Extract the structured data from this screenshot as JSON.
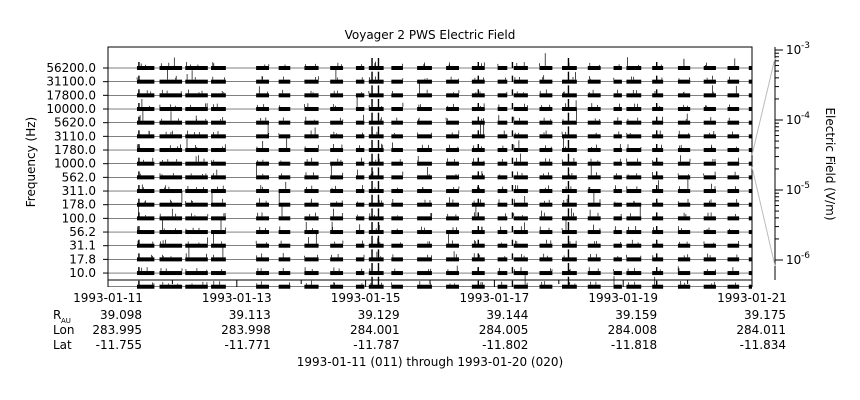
{
  "chart_data": {
    "type": "line",
    "title": "Voyager 2 PWS Electric Field",
    "ylabel": "Frequency (Hz)",
    "colorbar_label": "Electric Field (V/m)",
    "subtitle": "1993-01-11 (011) through 1993-01-20 (020)",
    "channels": [
      "56200.0",
      "31100.0",
      "17800.0",
      "10000.0",
      "5620.0",
      "3110.0",
      "1780.0",
      "1000.0",
      "562.0",
      "311.0",
      "178.0",
      "100.0",
      "56.2",
      "31.1",
      "17.8",
      "10.0"
    ],
    "x_ticks": [
      "1993-01-11",
      "1993-01-13",
      "1993-01-15",
      "1993-01-17",
      "1993-01-19",
      "1993-01-21"
    ],
    "xlim_days": [
      0,
      10
    ],
    "colorbar_ticks": [
      {
        "base": "10",
        "exp": "-3"
      },
      {
        "base": "10",
        "exp": "-4"
      },
      {
        "base": "10",
        "exp": "-5"
      },
      {
        "base": "10",
        "exp": "-6"
      }
    ],
    "ephemeris": [
      {
        "label": "R",
        "sub": "AU",
        "values": [
          "39.098",
          "39.113",
          "39.129",
          "39.144",
          "39.159",
          "39.175"
        ]
      },
      {
        "label": "Lon",
        "sub": "",
        "values": [
          "283.995",
          "283.998",
          "284.001",
          "284.005",
          "284.008",
          "284.011"
        ]
      },
      {
        "label": "Lat",
        "sub": "",
        "values": [
          "-11.755",
          "-11.771",
          "-11.787",
          "-11.802",
          "-11.818",
          "-11.834"
        ]
      }
    ],
    "data_segments_days": [
      [
        0.45,
        0.72
      ],
      [
        0.8,
        1.15
      ],
      [
        1.2,
        1.55
      ],
      [
        1.6,
        1.83
      ],
      [
        2.3,
        2.5
      ],
      [
        2.65,
        2.83
      ],
      [
        3.05,
        3.27
      ],
      [
        3.45,
        3.65
      ],
      [
        3.85,
        3.98
      ],
      [
        4.05,
        4.28
      ],
      [
        4.4,
        4.58
      ],
      [
        4.8,
        5.03
      ],
      [
        5.25,
        5.45
      ],
      [
        5.65,
        5.85
      ],
      [
        6.05,
        6.2
      ],
      [
        6.3,
        6.52
      ],
      [
        6.7,
        6.9
      ],
      [
        7.05,
        7.28
      ],
      [
        7.45,
        7.65
      ],
      [
        7.85,
        7.98
      ],
      [
        8.05,
        8.28
      ],
      [
        8.45,
        8.62
      ],
      [
        8.85,
        9.04
      ],
      [
        9.25,
        9.44
      ],
      [
        9.62,
        9.8
      ],
      [
        9.95,
        10.0
      ]
    ]
  }
}
